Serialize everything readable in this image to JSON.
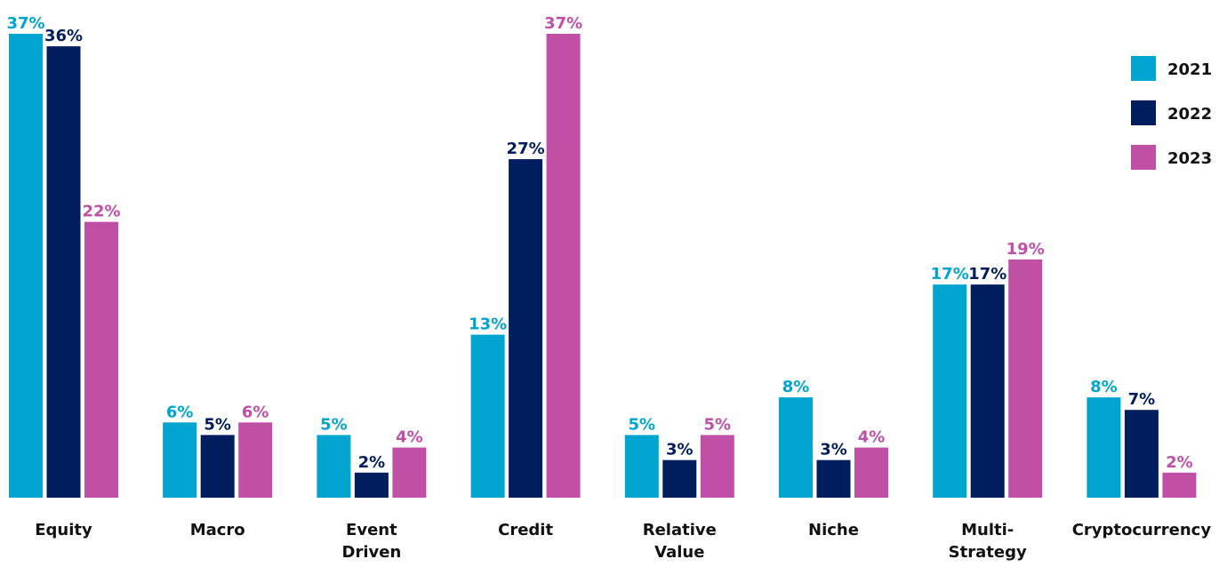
{
  "chart_data": {
    "type": "bar",
    "categories": [
      "Equity",
      "Macro",
      "Event Driven",
      "Credit",
      "Relative Value",
      "Niche",
      "Multi-Strategy",
      "Cryptocurrency"
    ],
    "series": [
      {
        "name": "2021",
        "color": "#00a5cf",
        "values": [
          37,
          6,
          5,
          13,
          5,
          8,
          17,
          8
        ],
        "value_labels": [
          "37%",
          "6%",
          "5%",
          "13%",
          "5%",
          "8%",
          "17%",
          "8%"
        ]
      },
      {
        "name": "2022",
        "color": "#001e5e",
        "values": [
          36,
          5,
          2,
          27,
          3,
          3,
          17,
          7
        ],
        "value_labels": [
          "36%",
          "5%",
          "2%",
          "27%",
          "3%",
          "3%",
          "17%",
          "7%"
        ]
      },
      {
        "name": "2023",
        "color": "#c04fa6",
        "values": [
          22,
          6,
          4,
          37,
          5,
          4,
          19,
          2
        ],
        "value_labels": [
          "22%",
          "6%",
          "4%",
          "37%",
          "5%",
          "4%",
          "19%",
          "2%"
        ]
      }
    ],
    "legend": "right"
  }
}
